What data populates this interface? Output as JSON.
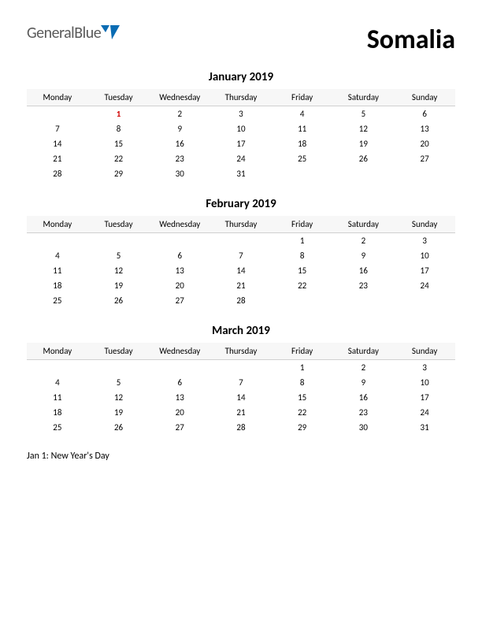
{
  "logo": {
    "text1": "General",
    "text2": "Blue",
    "text_color": "#5a5a5a",
    "blue_color": "#0a6cb3",
    "mark_color": "#0a6cb3"
  },
  "country": "Somalia",
  "background_color": "#ffffff",
  "text_color": "#000000",
  "holiday_color": "#d00000",
  "header_bg": "#f7f7f7",
  "header_border": "#d0d0d0",
  "day_headers": [
    "Monday",
    "Tuesday",
    "Wednesday",
    "Thursday",
    "Friday",
    "Saturday",
    "Sunday"
  ],
  "months": [
    {
      "title": "January 2019",
      "weeks": [
        [
          "",
          {
            "d": "1",
            "holiday": true
          },
          "2",
          "3",
          "4",
          "5",
          "6"
        ],
        [
          "7",
          "8",
          "9",
          "10",
          "11",
          "12",
          "13"
        ],
        [
          "14",
          "15",
          "16",
          "17",
          "18",
          "19",
          "20"
        ],
        [
          "21",
          "22",
          "23",
          "24",
          "25",
          "26",
          "27"
        ],
        [
          "28",
          "29",
          "30",
          "31",
          "",
          "",
          ""
        ]
      ]
    },
    {
      "title": "February 2019",
      "weeks": [
        [
          "",
          "",
          "",
          "",
          "1",
          "2",
          "3"
        ],
        [
          "4",
          "5",
          "6",
          "7",
          "8",
          "9",
          "10"
        ],
        [
          "11",
          "12",
          "13",
          "14",
          "15",
          "16",
          "17"
        ],
        [
          "18",
          "19",
          "20",
          "21",
          "22",
          "23",
          "24"
        ],
        [
          "25",
          "26",
          "27",
          "28",
          "",
          "",
          ""
        ]
      ]
    },
    {
      "title": "March 2019",
      "weeks": [
        [
          "",
          "",
          "",
          "",
          "1",
          "2",
          "3"
        ],
        [
          "4",
          "5",
          "6",
          "7",
          "8",
          "9",
          "10"
        ],
        [
          "11",
          "12",
          "13",
          "14",
          "15",
          "16",
          "17"
        ],
        [
          "18",
          "19",
          "20",
          "21",
          "22",
          "23",
          "24"
        ],
        [
          "25",
          "26",
          "27",
          "28",
          "29",
          "30",
          "31"
        ]
      ]
    }
  ],
  "notes": "Jan 1: New Year's Day",
  "fonts": {
    "title_size": 15,
    "country_size": 34,
    "header_size": 11,
    "cell_size": 11,
    "notes_size": 12
  }
}
